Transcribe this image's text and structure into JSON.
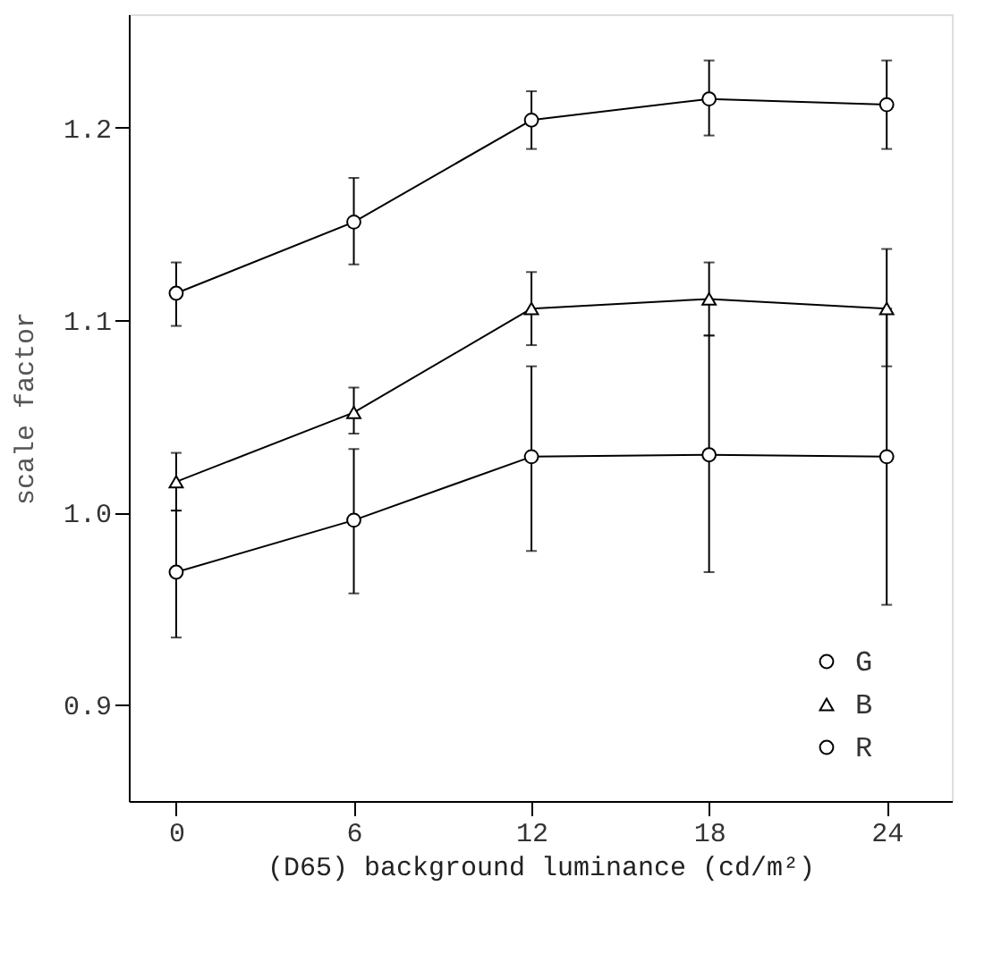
{
  "chart_data": {
    "type": "line",
    "xlabel": "(D65) background luminance (cd/m²)",
    "ylabel": "scale factor",
    "x": [
      0,
      6,
      12,
      18,
      24
    ],
    "series": [
      {
        "name": "G",
        "color": "#000000",
        "marker": "circle",
        "values": [
          1.114,
          1.151,
          1.204,
          1.215,
          1.212
        ],
        "errors": [
          [
            1.097,
            1.13
          ],
          [
            1.129,
            1.174
          ],
          [
            1.189,
            1.219
          ],
          [
            1.196,
            1.235
          ],
          [
            1.189,
            1.235
          ]
        ]
      },
      {
        "name": "B",
        "color": "#000000",
        "marker": "triangle",
        "values": [
          1.016,
          1.052,
          1.106,
          1.111,
          1.106
        ],
        "errors": [
          [
            1.001,
            1.031
          ],
          [
            1.041,
            1.065
          ],
          [
            1.087,
            1.125
          ],
          [
            1.092,
            1.13
          ],
          [
            1.076,
            1.137
          ]
        ]
      },
      {
        "name": "R",
        "color": "#000000",
        "marker": "circle",
        "values": [
          0.969,
          0.996,
          1.029,
          1.03,
          1.029
        ],
        "errors": [
          [
            0.935,
            1.001
          ],
          [
            0.958,
            1.033
          ],
          [
            0.98,
            1.076
          ],
          [
            0.969,
            1.092
          ],
          [
            0.952,
            1.106
          ]
        ]
      }
    ],
    "xlim": [
      -1.6,
      26.2
    ],
    "ylim": [
      0.85,
      1.259
    ],
    "xticks": [
      0,
      6,
      12,
      18,
      24
    ],
    "yticks": [
      {
        "value": 0.9,
        "label": "0.9"
      },
      {
        "value": 1.0,
        "label": "1.0"
      },
      {
        "value": 1.1,
        "label": "1.1"
      },
      {
        "value": 1.2,
        "label": "1.2"
      }
    ],
    "legend": "bottom right",
    "grid": false,
    "line_style": "solid"
  }
}
